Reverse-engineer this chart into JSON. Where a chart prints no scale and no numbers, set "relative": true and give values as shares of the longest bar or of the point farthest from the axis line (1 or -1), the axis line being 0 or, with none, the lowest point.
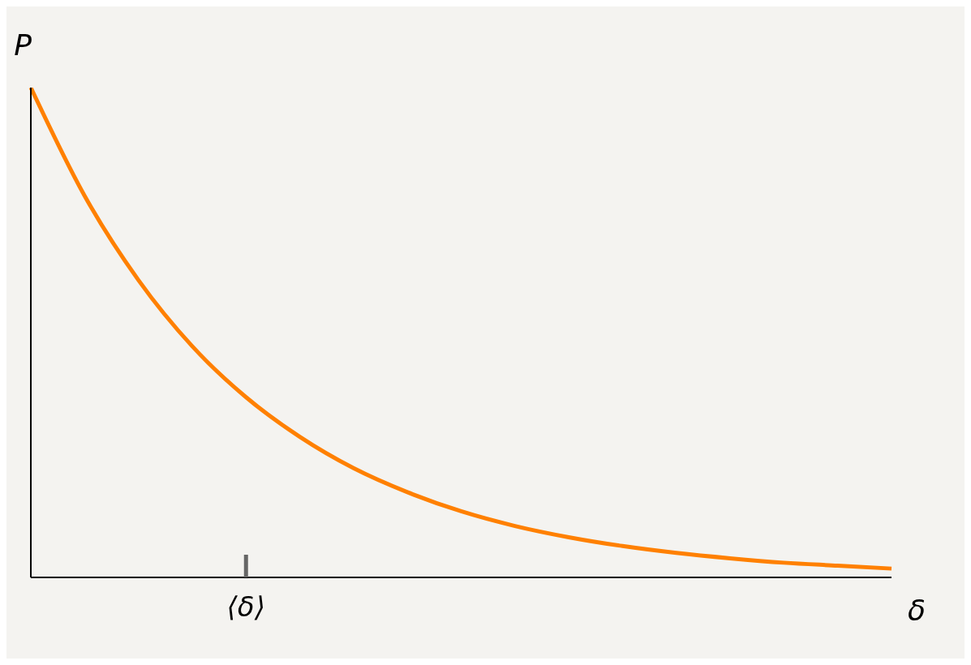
{
  "chart_data": {
    "type": "line",
    "relative": true,
    "xlabel": "δ",
    "ylabel": "P",
    "annotations": [
      "⟨δ⟩"
    ],
    "categories": [
      null,
      null,
      null,
      null,
      null,
      null,
      null,
      null,
      null,
      null,
      null,
      null,
      null,
      null,
      null,
      null,
      null
    ],
    "series": [
      {
        "color": "#ff8000",
        "values": [
          1,
          0.779,
          0.607,
          0.472,
          0.368,
          0.287,
          0.223,
          0.174,
          0.135,
          0.105,
          0.082,
          0.064,
          0.05,
          0.039,
          0.03,
          0.024,
          0.018
        ]
      }
    ],
    "grid": false,
    "legend": false,
    "marker": "none",
    "line_style": "solid"
  }
}
